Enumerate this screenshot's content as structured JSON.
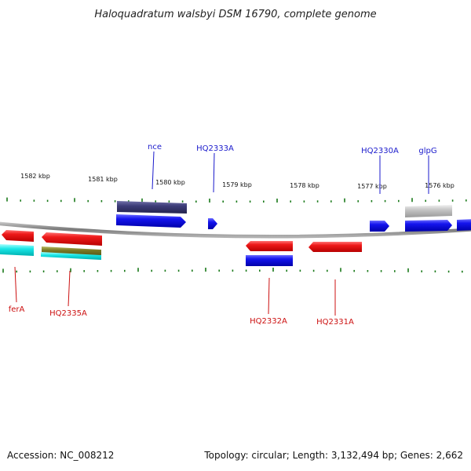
{
  "title": "Haloquadratum walsbyi DSM 16790, complete genome",
  "tick_labels": [
    "1582 kbp",
    "1581 kbp",
    "1580 kbp",
    "1579 kbp",
    "1578 kbp",
    "1577 kbp",
    "1576 kbp"
  ],
  "genes_top": [
    "nce",
    "HQ2333A",
    "HQ2330A",
    "glpG"
  ],
  "genes_bottom": [
    "ferA",
    "HQ2335A",
    "HQ2332A",
    "HQ2331A"
  ],
  "footer": {
    "accession": "Accession: NC_008212",
    "summary": "Topology: circular; Length: 3,132,494 bp; Genes: 2,662"
  },
  "colors": {
    "forward_cds": "#1010e8",
    "reverse_cds": "#e81010",
    "top_label": "#1a1acc",
    "bottom_label": "#cc1010",
    "tick": "#1a7a1a",
    "backbone": "#8a8a8a"
  }
}
